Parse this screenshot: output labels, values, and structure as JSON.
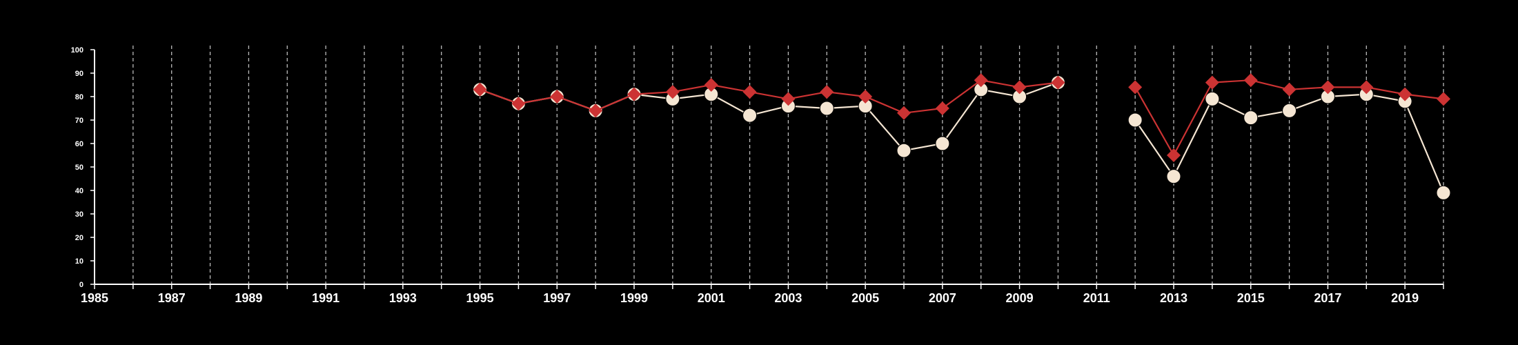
{
  "chart_data": {
    "type": "line",
    "title": "",
    "xlabel": "",
    "ylabel": "",
    "xlim": [
      1985,
      2020
    ],
    "ylim": [
      0,
      100
    ],
    "x_tick_labels": [
      "1985",
      "1987",
      "1989",
      "1991",
      "1993",
      "1995",
      "1997",
      "1999",
      "2001",
      "2003",
      "2005",
      "2007",
      "2009",
      "2011",
      "2013",
      "2015",
      "2017",
      "2019"
    ],
    "y_tick_labels": [
      "0",
      "10",
      "20",
      "30",
      "40",
      "50",
      "60",
      "70",
      "80",
      "90",
      "100"
    ],
    "grid": "vertical dashed at every year",
    "background": "#000000",
    "series": [
      {
        "color": "#f5e6d3",
        "marker": "circle",
        "x": [
          1995,
          1996,
          1997,
          1998,
          1999,
          2000,
          2001,
          2002,
          2003,
          2004,
          2005,
          2006,
          2007,
          2008,
          2009,
          2010,
          2011,
          2012,
          2013,
          2014,
          2015,
          2016,
          2017,
          2018,
          2019,
          2020
        ],
        "values": [
          83,
          77,
          80,
          74,
          81,
          79,
          81,
          72,
          76,
          75,
          76,
          57,
          60,
          83,
          80,
          86,
          null,
          70,
          46,
          79,
          71,
          74,
          80,
          81,
          78,
          39
        ]
      },
      {
        "color": "#cc3333",
        "marker": "diamond",
        "x": [
          1995,
          1996,
          1997,
          1998,
          1999,
          2000,
          2001,
          2002,
          2003,
          2004,
          2005,
          2006,
          2007,
          2008,
          2009,
          2010,
          2011,
          2012,
          2013,
          2014,
          2015,
          2016,
          2017,
          2018,
          2019,
          2020
        ],
        "values": [
          83,
          77,
          80,
          74,
          81,
          82,
          85,
          82,
          79,
          82,
          80,
          73,
          75,
          87,
          84,
          86,
          null,
          84,
          55,
          86,
          87,
          83,
          84,
          84,
          81,
          79
        ]
      }
    ]
  }
}
